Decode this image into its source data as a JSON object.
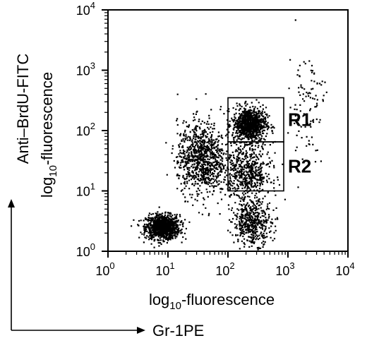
{
  "chart_data": {
    "type": "scatter",
    "scale": "log10",
    "xlim": [
      1,
      10000
    ],
    "ylim": [
      1,
      10000
    ],
    "x_ticks": [
      {
        "value": 1,
        "base": "10",
        "exp": "0"
      },
      {
        "value": 10,
        "base": "10",
        "exp": "1"
      },
      {
        "value": 100,
        "base": "10",
        "exp": "2"
      },
      {
        "value": 1000,
        "base": "10",
        "exp": "3"
      },
      {
        "value": 10000,
        "base": "10",
        "exp": "4"
      }
    ],
    "y_ticks": [
      {
        "value": 1,
        "base": "10",
        "exp": "0"
      },
      {
        "value": 10,
        "base": "10",
        "exp": "1"
      },
      {
        "value": 100,
        "base": "10",
        "exp": "2"
      },
      {
        "value": 1000,
        "base": "10",
        "exp": "3"
      },
      {
        "value": 10000,
        "base": "10",
        "exp": "4"
      }
    ],
    "xlabel": {
      "pre": "log",
      "sub": "10",
      "post": "-fluorescence"
    },
    "ylabel_line1": "Anti–BrdU-FITC",
    "ylabel_line2": {
      "pre": "log",
      "sub": "10",
      "post": "-fluorescence"
    },
    "x_marker_label": "Gr-1PE",
    "regions": [
      {
        "name": "R1",
        "x": [
          100,
          850
        ],
        "y": [
          65,
          350
        ]
      },
      {
        "name": "R2",
        "x": [
          100,
          850
        ],
        "y": [
          10,
          65
        ]
      }
    ],
    "populations": [
      {
        "cx": 8,
        "cy": 2.6,
        "sx": 0.14,
        "sy": 0.1,
        "n": 1100
      },
      {
        "cx": 220,
        "cy": 130,
        "sx": 0.14,
        "sy": 0.14,
        "n": 900
      },
      {
        "cx": 35,
        "cy": 35,
        "sx": 0.2,
        "sy": 0.3,
        "n": 900
      },
      {
        "cx": 200,
        "cy": 20,
        "sx": 0.2,
        "sy": 0.25,
        "n": 600
      },
      {
        "cx": 250,
        "cy": 3,
        "sx": 0.16,
        "sy": 0.18,
        "n": 450
      },
      {
        "cx": 2000,
        "cy": 300,
        "sx": 0.15,
        "sy": 0.45,
        "n": 100
      }
    ]
  }
}
